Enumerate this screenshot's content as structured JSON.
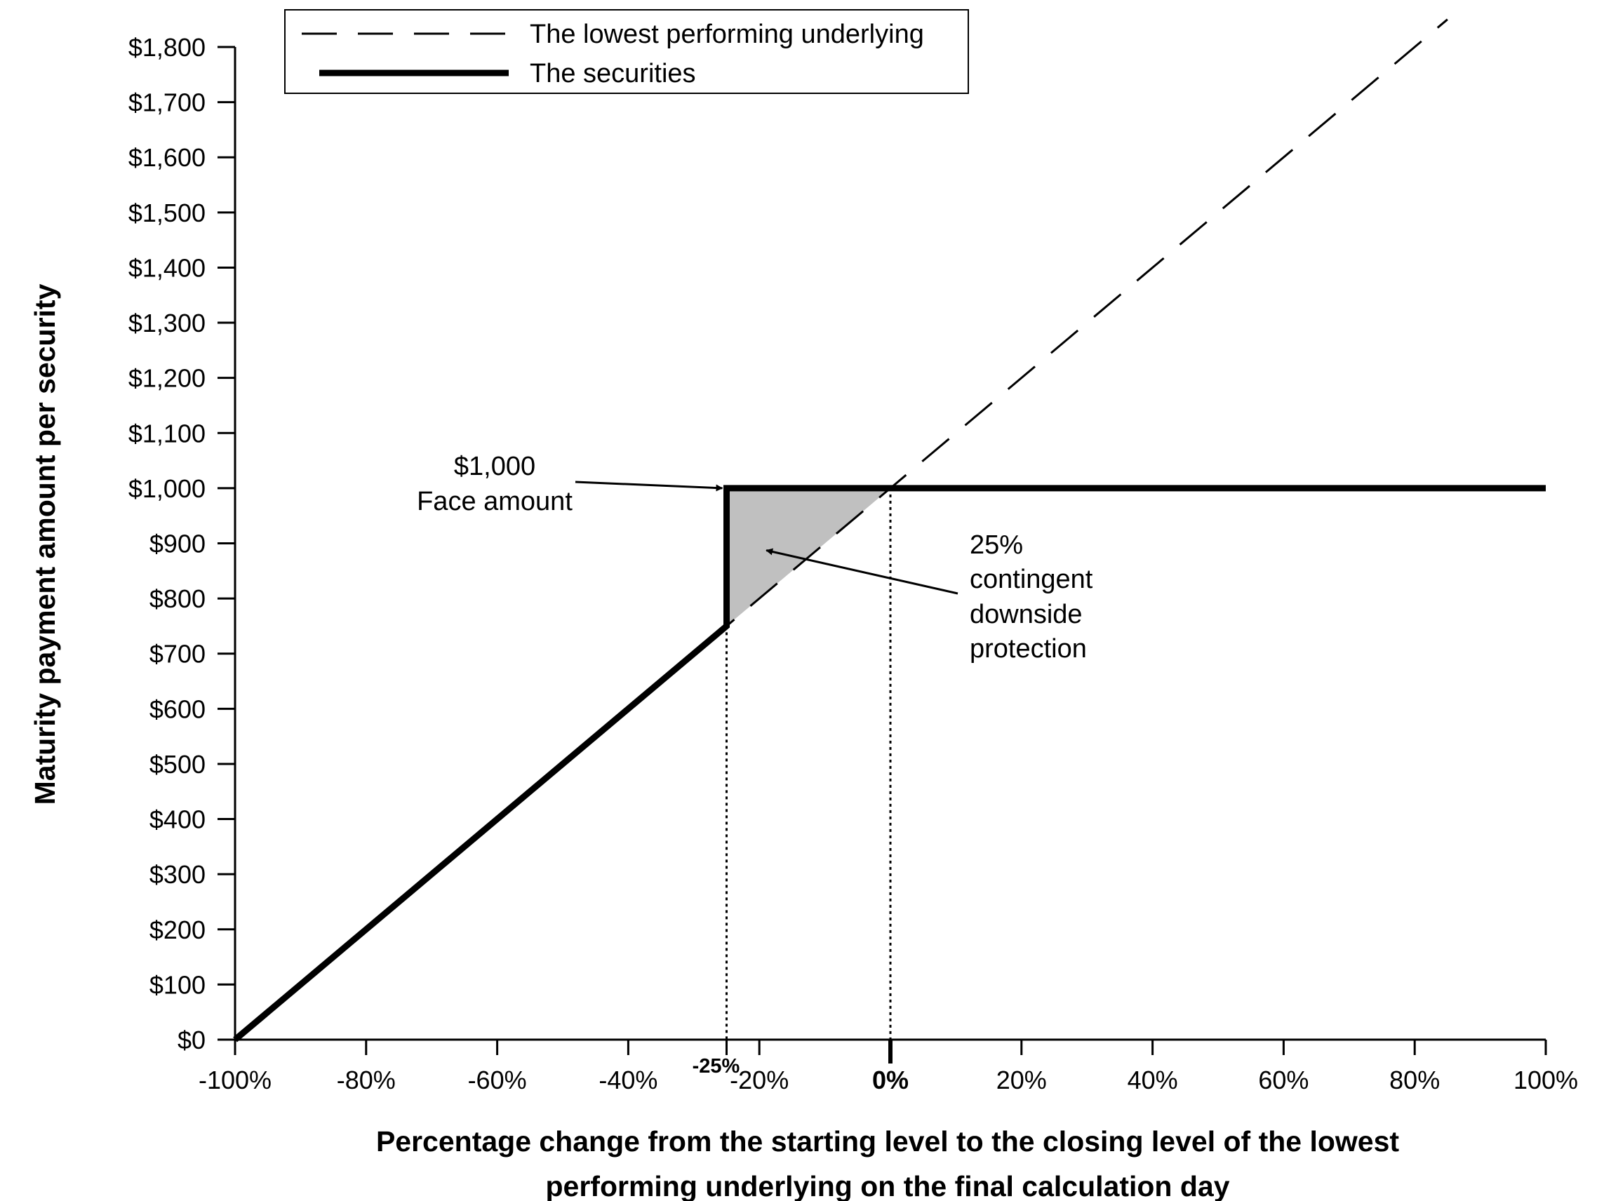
{
  "chart_data": {
    "type": "line",
    "xlabel_lines": [
      "Percentage change from the starting level to the closing level of the lowest",
      "performing underlying on the final calculation day"
    ],
    "ylabel": "Maturity payment amount per security",
    "xlim": [
      -100,
      100
    ],
    "ylim": [
      0,
      1800
    ],
    "x_ticks": [
      -100,
      -80,
      -60,
      -40,
      -20,
      0,
      20,
      40,
      60,
      80,
      100
    ],
    "x_tick_labels": [
      "-100%",
      "-80%",
      "-60%",
      "-40%",
      "-20%",
      "0%",
      "20%",
      "40%",
      "60%",
      "80%",
      "100%"
    ],
    "y_ticks": [
      0,
      100,
      200,
      300,
      400,
      500,
      600,
      700,
      800,
      900,
      1000,
      1100,
      1200,
      1300,
      1400,
      1500,
      1600,
      1700,
      1800
    ],
    "y_tick_labels": [
      "$0",
      "$100",
      "$200",
      "$300",
      "$400",
      "$500",
      "$600",
      "$700",
      "$800",
      "$900",
      "$1,000",
      "$1,100",
      "$1,200",
      "$1,300",
      "$1,400",
      "$1,500",
      "$1,600",
      "$1,700",
      "$1,800"
    ],
    "threshold_tick_label": "-25%",
    "series": [
      {
        "name": "The lowest performing underlying",
        "style": "dashed",
        "x": [
          -100,
          85
        ],
        "y": [
          0,
          1850
        ]
      },
      {
        "name": "The securities",
        "style": "solid-thick",
        "x": [
          -100,
          -25,
          -25,
          100
        ],
        "y": [
          0,
          750,
          1000,
          1000
        ]
      }
    ],
    "shaded_region": {
      "x": [
        -25,
        0,
        -25
      ],
      "y": [
        1000,
        1000,
        750
      ],
      "color": "#c0c0c0"
    },
    "reference_lines": [
      -25,
      0
    ],
    "annotations": [
      {
        "lines": [
          "$1,000",
          "Face amount"
        ],
        "points_to": {
          "x": -25,
          "y": 1000
        }
      },
      {
        "lines": [
          "25%",
          "contingent",
          "downside",
          "protection"
        ],
        "points_to": {
          "x": -20,
          "y": 900
        }
      }
    ],
    "legend_position": "top",
    "grid": false
  }
}
